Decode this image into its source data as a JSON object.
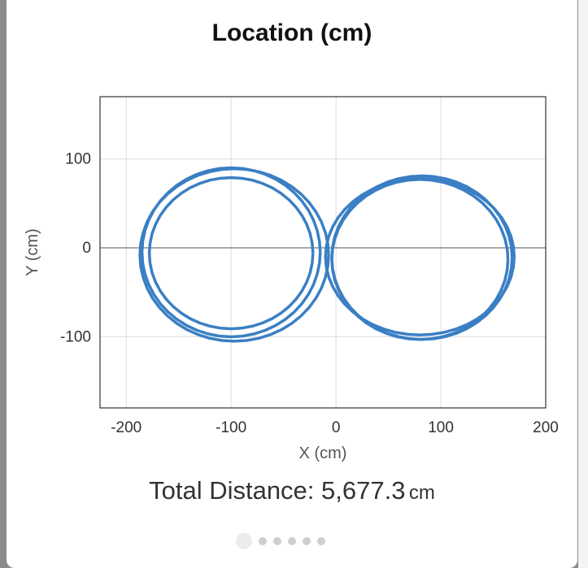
{
  "title": "Location (cm)",
  "total_distance": {
    "label": "Total Distance: 5,677.3",
    "unit": "cm"
  },
  "pager": {
    "count": 6,
    "active_index": 0
  },
  "chart_data": {
    "type": "line",
    "title": "Location (cm)",
    "xlabel": "X (cm)",
    "ylabel": "Y (cm)",
    "xlim": [
      -225,
      200
    ],
    "ylim": [
      -180,
      170
    ],
    "xticks": [
      -200,
      -100,
      0,
      100,
      200
    ],
    "yticks": [
      -100,
      0,
      100
    ],
    "xtick_labels": [
      "-200",
      "-100",
      "0",
      "100",
      "200"
    ],
    "ytick_labels": [
      "-100",
      "0",
      "100"
    ],
    "grid": true,
    "line_color": "#3a7fc4",
    "path_shape": "figure-eight",
    "loops": [
      {
        "cx": -100,
        "cy": -5,
        "rx": 85,
        "ry": 95
      },
      {
        "cx": -97,
        "cy": -8,
        "rx": 90,
        "ry": 97
      },
      {
        "cx": -100,
        "cy": -6,
        "rx": 78,
        "ry": 85
      },
      {
        "cx": 80,
        "cy": -10,
        "rx": 90,
        "ry": 88
      },
      {
        "cx": 82,
        "cy": -11,
        "rx": 86,
        "ry": 92
      },
      {
        "cx": 80,
        "cy": -13,
        "rx": 84,
        "ry": 90
      }
    ]
  }
}
